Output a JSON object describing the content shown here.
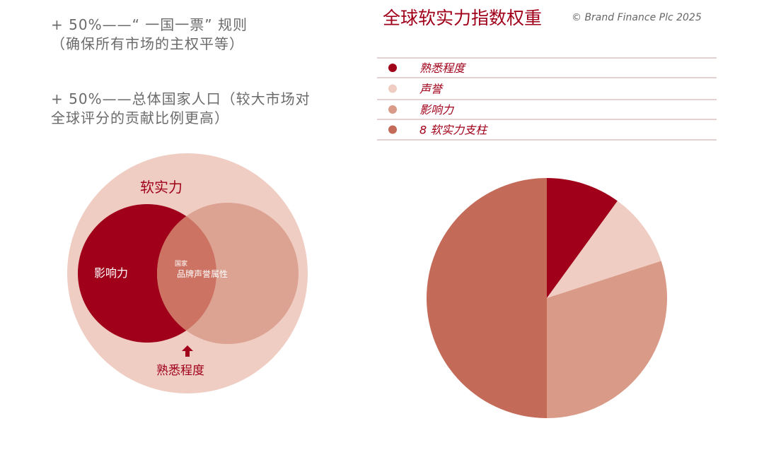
{
  "text": {
    "paragraphs": [
      "+ 50%——“ 一国一票” 规则（确保所有市场的主权平等）",
      "+ 50%——总体国家人口（较大市场对全球评分的贡献比例更高）"
    ]
  },
  "venn": {
    "outer": "软实力",
    "left": "影响力",
    "overlap_small": "国家",
    "overlap": "品牌声誉属性",
    "bottom": "熟悉程度"
  },
  "chart_data": {
    "type": "pie",
    "title": "全球软实力指数权重",
    "subtitle": "© Brand Finance Plc 2025",
    "categories": [
      "熟悉程度",
      "声誉",
      "影响力",
      "8 软实力支柱"
    ],
    "values": [
      10,
      10,
      30,
      50
    ],
    "colors": [
      "#a0001a",
      "#f0cdc2",
      "#d99a88",
      "#c46a58"
    ]
  }
}
